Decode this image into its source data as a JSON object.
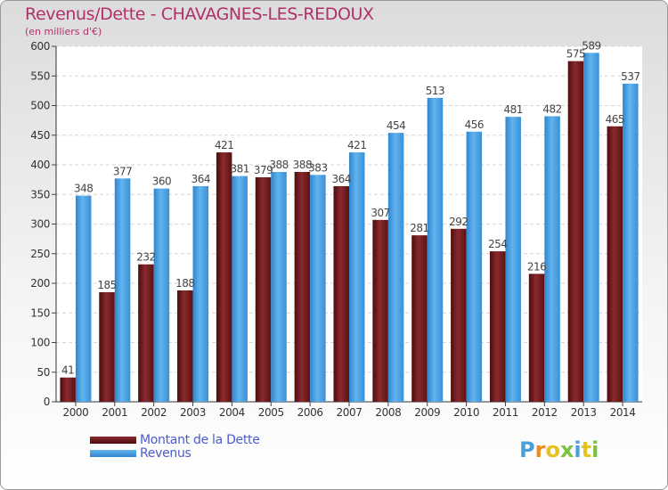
{
  "colors": {
    "series_dette": "#6b1a1d",
    "series_revenus": "#49a0e0",
    "title": "#b0306a",
    "legend_text": "#4a5bd0"
  },
  "chart_data": {
    "type": "bar",
    "title": "Revenus/Dette - CHAVAGNES-LES-REDOUX",
    "subtitle": "(en milliers d'€)",
    "xlabel": "",
    "ylabel": "",
    "ylim": [
      0,
      600
    ],
    "yticks": [
      0,
      50,
      100,
      150,
      200,
      250,
      300,
      350,
      400,
      450,
      500,
      550,
      600
    ],
    "grid": true,
    "legend_position": "bottom-left",
    "categories": [
      "2000",
      "2001",
      "2002",
      "2003",
      "2004",
      "2005",
      "2006",
      "2007",
      "2008",
      "2009",
      "2010",
      "2011",
      "2012",
      "2013",
      "2014"
    ],
    "series": [
      {
        "name": "Montant de la Dette",
        "color": "#6b1a1d",
        "values": [
          41,
          185,
          232,
          188,
          421,
          379,
          388,
          364,
          307,
          281,
          292,
          254,
          216,
          575,
          465
        ]
      },
      {
        "name": "Revenus",
        "color": "#49a0e0",
        "values": [
          348,
          377,
          360,
          364,
          381,
          388,
          383,
          421,
          454,
          513,
          456,
          481,
          482,
          589,
          537
        ]
      }
    ]
  },
  "logo": {
    "letters": [
      "P",
      "r",
      "o",
      "x",
      "i",
      "t",
      "i"
    ],
    "colors": [
      "#4aa0dc",
      "#f08a1c",
      "#e6c21e",
      "#7cc242",
      "#4aa0dc",
      "#e6c21e",
      "#7cc242"
    ]
  }
}
